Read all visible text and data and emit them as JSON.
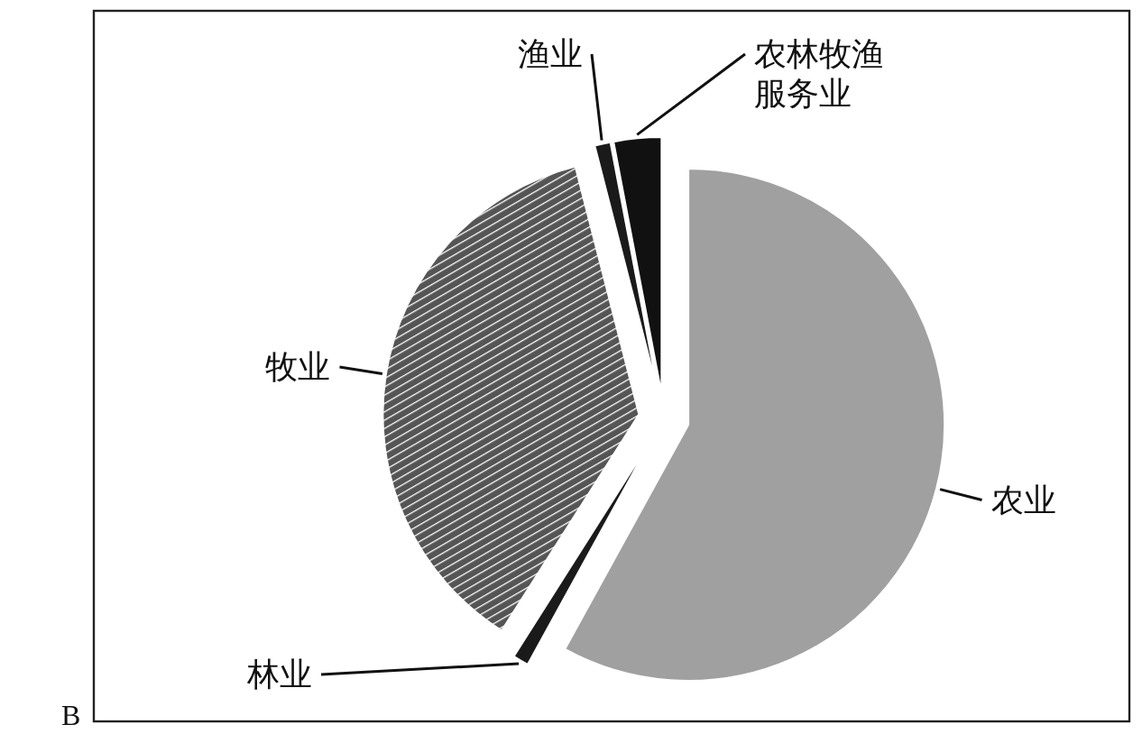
{
  "chart_data": {
    "type": "pie",
    "categories": [
      "农业",
      "林业",
      "牧业",
      "渔业",
      "农林牧渔服务业"
    ],
    "values": [
      58,
      1,
      37,
      1,
      3
    ],
    "colors": [
      "#a0a0a0",
      "#1a1a1a",
      "#555555",
      "#1a1a1a",
      "#111111"
    ],
    "annotations": [
      "B"
    ]
  }
}
